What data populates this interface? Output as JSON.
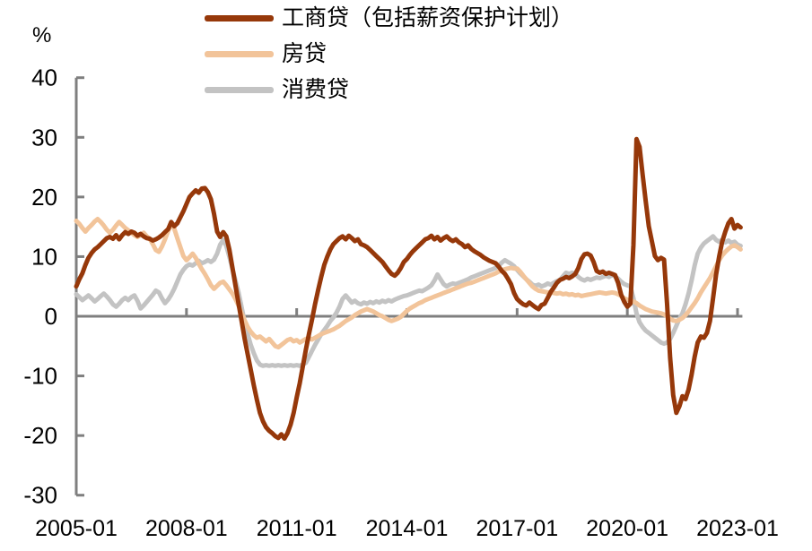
{
  "figure": {
    "y_axis_unit": "%",
    "legend": [
      {
        "label": "工商贷（包括薪资保护计划）",
        "color": "#96380A"
      },
      {
        "label": "房贷",
        "color": "#F2C49A"
      },
      {
        "label": "消费贷",
        "color": "#C3C3C3"
      }
    ]
  },
  "chart_data": {
    "type": "line",
    "title": "",
    "xlabel": "",
    "ylabel": "%",
    "x_unit": "month",
    "x_start": "2005-01",
    "x_end": "2023-02",
    "x_tick_labels": [
      "2005-01",
      "2008-01",
      "2011-01",
      "2014-01",
      "2017-01",
      "2020-01",
      "2023-01"
    ],
    "x_tick_interval_months": 36,
    "y_ticks": [
      40,
      30,
      20,
      10,
      0,
      -10,
      -20,
      -30
    ],
    "ylim": [
      -30,
      40
    ],
    "grid": false,
    "legend_position": "top-center",
    "axis_color": "#7F7F7F",
    "line_width": 5,
    "series": [
      {
        "name": "工商贷（包括薪资保护计划）",
        "color": "#96380A",
        "values": [
          5.0,
          6.2,
          7.2,
          8.6,
          9.8,
          10.6,
          11.2,
          11.6,
          12.1,
          12.6,
          13.1,
          13.3,
          13.0,
          13.6,
          12.9,
          13.6,
          14.1,
          13.8,
          14.2,
          14.0,
          13.5,
          13.8,
          13.4,
          13.1,
          13.0,
          12.7,
          12.9,
          13.2,
          13.6,
          14.1,
          14.6,
          15.8,
          15.1,
          15.6,
          16.6,
          17.6,
          18.8,
          20.0,
          20.6,
          21.1,
          20.7,
          21.4,
          21.5,
          20.8,
          19.6,
          17.2,
          14.2,
          13.3,
          14.1,
          13.4,
          11.2,
          8.2,
          5.2,
          2.2,
          -0.8,
          -3.8,
          -6.4,
          -9.0,
          -11.6,
          -14.0,
          -16.2,
          -17.6,
          -18.6,
          -19.2,
          -19.6,
          -20.1,
          -20.4,
          -19.8,
          -20.5,
          -19.6,
          -18.2,
          -16.2,
          -13.6,
          -11.2,
          -8.4,
          -5.6,
          -3.0,
          -0.6,
          2.0,
          4.4,
          6.6,
          8.6,
          10.0,
          11.2,
          12.1,
          12.6,
          13.1,
          13.4,
          12.9,
          13.5,
          13.1,
          12.6,
          12.9,
          12.1,
          11.9,
          11.6,
          11.1,
          10.6,
          10.1,
          9.6,
          9.1,
          8.4,
          7.7,
          7.1,
          6.8,
          7.3,
          8.1,
          9.1,
          9.6,
          10.3,
          10.9,
          11.4,
          11.9,
          12.4,
          12.9,
          13.1,
          13.5,
          12.9,
          13.3,
          12.7,
          13.1,
          13.4,
          12.9,
          12.6,
          12.9,
          12.4,
          12.1,
          11.6,
          11.9,
          11.3,
          10.9,
          10.6,
          10.3,
          9.9,
          9.6,
          9.3,
          9.1,
          8.9,
          8.3,
          7.6,
          7.1,
          6.3,
          5.4,
          3.9,
          2.9,
          2.4,
          2.0,
          1.8,
          2.3,
          1.9,
          1.5,
          1.2,
          1.9,
          2.1,
          3.1,
          4.1,
          4.8,
          5.6,
          6.1,
          6.3,
          6.6,
          6.4,
          6.7,
          7.1,
          8.1,
          9.6,
          10.4,
          10.5,
          10.2,
          9.1,
          7.6,
          7.3,
          7.5,
          7.1,
          7.3,
          7.1,
          6.9,
          5.6,
          3.6,
          2.4,
          1.6,
          2.1,
          12.0,
          29.7,
          28.4,
          23.8,
          19.4,
          15.1,
          12.6,
          10.1,
          9.4,
          9.8,
          9.5,
          2.0,
          -7.0,
          -13.2,
          -16.2,
          -15.1,
          -13.4,
          -13.9,
          -12.3,
          -9.8,
          -6.8,
          -4.4,
          -3.4,
          -3.6,
          -2.8,
          -0.8,
          3.0,
          7.0,
          10.0,
          12.5,
          14.2,
          15.6,
          16.3,
          14.7,
          15.3,
          14.9
        ]
      },
      {
        "name": "房贷",
        "color": "#F2C49A",
        "values": [
          16.0,
          15.5,
          14.8,
          14.2,
          14.8,
          15.3,
          15.9,
          16.3,
          15.8,
          15.2,
          14.5,
          14.0,
          14.5,
          15.2,
          15.8,
          15.3,
          14.8,
          14.4,
          14.0,
          13.6,
          13.3,
          13.6,
          14.0,
          13.4,
          13.0,
          12.1,
          11.1,
          10.8,
          11.7,
          12.9,
          14.3,
          15.4,
          14.7,
          13.1,
          11.6,
          10.1,
          9.4,
          9.9,
          10.5,
          9.8,
          8.8,
          7.9,
          7.1,
          6.2,
          5.2,
          4.6,
          5.1,
          5.6,
          5.8,
          5.2,
          4.5,
          3.8,
          2.9,
          1.8,
          0.5,
          -0.7,
          -1.8,
          -2.6,
          -3.2,
          -3.6,
          -3.4,
          -3.8,
          -4.2,
          -3.8,
          -4.4,
          -5.0,
          -5.2,
          -4.8,
          -4.4,
          -4.0,
          -3.8,
          -4.2,
          -4.0,
          -4.4,
          -4.1,
          -3.8,
          -3.6,
          -3.9,
          -3.6,
          -3.3,
          -3.0,
          -2.8,
          -2.6,
          -2.4,
          -2.2,
          -1.9,
          -1.6,
          -1.2,
          -0.8,
          -0.5,
          -0.2,
          0.2,
          0.5,
          0.8,
          1.0,
          1.2,
          1.0,
          0.8,
          0.5,
          0.2,
          0.0,
          -0.3,
          -0.6,
          -0.8,
          -0.6,
          -0.4,
          -0.1,
          0.4,
          0.9,
          1.3,
          1.6,
          1.9,
          2.2,
          2.4,
          2.7,
          2.9,
          3.1,
          3.3,
          3.5,
          3.7,
          3.9,
          4.1,
          4.3,
          4.5,
          4.7,
          4.9,
          5.1,
          5.3,
          5.5,
          5.6,
          5.8,
          6.0,
          6.2,
          6.4,
          6.6,
          6.8,
          7.0,
          7.2,
          7.5,
          7.7,
          7.9,
          8.0,
          8.1,
          8.0,
          8.0,
          7.5,
          6.8,
          6.2,
          5.6,
          5.0,
          4.6,
          4.3,
          4.2,
          4.1,
          4.0,
          4.0,
          3.9,
          3.8,
          3.9,
          3.7,
          3.8,
          3.6,
          3.7,
          3.5,
          3.6,
          3.4,
          3.5,
          3.6,
          3.7,
          3.8,
          3.9,
          4.0,
          3.9,
          3.8,
          3.9,
          4.0,
          3.9,
          3.7,
          3.4,
          3.0,
          2.8,
          2.6,
          2.5,
          2.2,
          1.8,
          1.5,
          1.2,
          1.0,
          0.8,
          0.7,
          0.6,
          0.5,
          0.3,
          0.0,
          -0.4,
          -0.7,
          -0.8,
          -0.6,
          -0.3,
          0.2,
          0.8,
          1.5,
          2.2,
          3.0,
          4.0,
          4.8,
          5.6,
          6.4,
          7.4,
          8.4,
          9.4,
          10.2,
          10.8,
          11.3,
          11.7,
          11.9,
          11.6,
          11.2
        ]
      },
      {
        "name": "消费贷",
        "color": "#C3C3C3",
        "values": [
          3.7,
          3.2,
          2.7,
          3.1,
          3.5,
          3.0,
          2.5,
          2.9,
          3.4,
          3.8,
          3.3,
          2.7,
          2.0,
          1.6,
          2.1,
          2.7,
          3.1,
          2.7,
          3.2,
          3.5,
          2.6,
          1.3,
          1.8,
          2.4,
          3.0,
          3.6,
          4.3,
          4.0,
          3.0,
          2.2,
          2.8,
          3.6,
          4.6,
          5.8,
          7.0,
          7.8,
          8.4,
          8.7,
          8.5,
          8.9,
          9.3,
          8.9,
          9.1,
          9.4,
          9.1,
          9.5,
          10.5,
          12.0,
          12.8,
          11.8,
          10.0,
          8.0,
          6.0,
          4.0,
          1.5,
          -1.0,
          -3.0,
          -4.8,
          -6.2,
          -7.4,
          -8.1,
          -8.3,
          -8.2,
          -8.3,
          -8.2,
          -8.3,
          -8.2,
          -8.3,
          -8.2,
          -8.3,
          -8.2,
          -8.3,
          -8.2,
          -8.3,
          -8.1,
          -7.8,
          -6.8,
          -5.8,
          -4.8,
          -3.9,
          -3.0,
          -2.3,
          -1.6,
          -0.8,
          -0.2,
          0.6,
          1.6,
          2.9,
          3.5,
          2.9,
          2.3,
          2.6,
          2.2,
          2.0,
          2.3,
          2.1,
          2.4,
          2.2,
          2.5,
          2.3,
          2.6,
          2.4,
          2.7,
          2.5,
          2.8,
          3.0,
          3.2,
          3.4,
          3.5,
          3.7,
          3.9,
          4.1,
          4.3,
          4.2,
          4.5,
          4.8,
          5.2,
          6.0,
          7.0,
          6.2,
          5.4,
          5.0,
          5.3,
          5.5,
          5.4,
          5.6,
          5.8,
          6.0,
          6.2,
          6.5,
          6.7,
          6.9,
          7.1,
          7.3,
          7.5,
          7.7,
          7.9,
          8.1,
          8.5,
          9.0,
          9.4,
          9.1,
          8.8,
          8.4,
          7.8,
          7.2,
          6.7,
          6.2,
          5.8,
          5.3,
          5.1,
          5.3,
          5.0,
          5.2,
          5.5,
          5.3,
          5.6,
          5.9,
          6.1,
          6.7,
          7.3,
          7.1,
          7.3,
          7.1,
          6.6,
          6.2,
          6.0,
          6.3,
          6.1,
          6.3,
          6.5,
          6.4,
          6.6,
          6.8,
          6.6,
          6.9,
          6.7,
          6.3,
          5.8,
          5.4,
          5.2,
          5.0,
          3.0,
          0.5,
          -1.0,
          -1.8,
          -2.4,
          -2.8,
          -3.2,
          -3.6,
          -4.0,
          -4.4,
          -4.6,
          -4.4,
          -3.8,
          -2.8,
          -1.6,
          -0.4,
          0.5,
          2.0,
          3.8,
          6.0,
          8.5,
          10.5,
          11.5,
          12.2,
          12.6,
          13.0,
          13.4,
          12.8,
          12.5,
          12.8,
          12.4,
          12.7,
          12.3,
          12.5,
          12.0,
          11.8
        ]
      }
    ]
  }
}
